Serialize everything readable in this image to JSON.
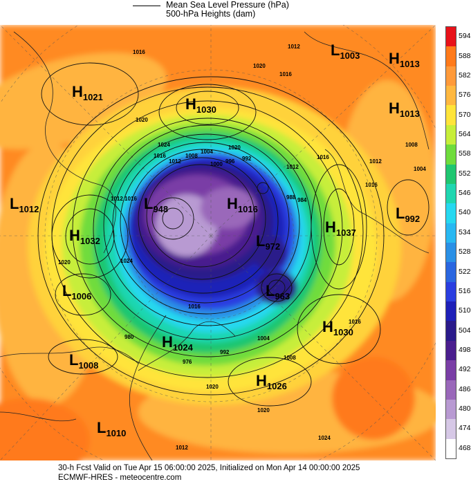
{
  "header": {
    "legend_pressure": "Mean Sea Level Pressure (hPa)",
    "legend_heights": "500-hPa Heights (dam)"
  },
  "footer": {
    "valid_line": "30-h Fcst Valid on Tue Apr 15 06:00:00 2025, Initialized on Mon Apr 14 00:00:00 2025",
    "model_line": "ECMWF-HRES - meteocentre.com"
  },
  "colorbar": {
    "levels": [
      "594",
      "588",
      "582",
      "576",
      "570",
      "564",
      "558",
      "552",
      "546",
      "540",
      "534",
      "528",
      "522",
      "516",
      "510",
      "504",
      "498",
      "492",
      "486",
      "480",
      "474",
      "468"
    ],
    "colors": [
      "#e8121a",
      "#ff7a1a",
      "#ff9a3a",
      "#ffb840",
      "#ffe43a",
      "#c7ee3a",
      "#6fdc3c",
      "#1fc670",
      "#1fd6b0",
      "#26d8f0",
      "#28b8f2",
      "#2a90e6",
      "#2a66e0",
      "#2a3ee0",
      "#1e20b8",
      "#2a1a8a",
      "#4a1e8e",
      "#7a3ea6",
      "#9a68ba",
      "#b89ad2",
      "#d6c8e6",
      "#ffffff"
    ]
  },
  "pressure_systems": [
    {
      "type": "H",
      "value": "1021"
    },
    {
      "type": "H",
      "value": "1030"
    },
    {
      "type": "L",
      "value": "1003"
    },
    {
      "type": "H",
      "value": "1013"
    },
    {
      "type": "H",
      "value": "1013"
    },
    {
      "type": "L",
      "value": "1012"
    },
    {
      "type": "L",
      "value": "948"
    },
    {
      "type": "H",
      "value": "1016"
    },
    {
      "type": "L",
      "value": "992"
    },
    {
      "type": "H",
      "value": "1032"
    },
    {
      "type": "H",
      "value": "1037"
    },
    {
      "type": "L",
      "value": "972"
    },
    {
      "type": "L",
      "value": "1006"
    },
    {
      "type": "L",
      "value": "963"
    },
    {
      "type": "H",
      "value": "1030"
    },
    {
      "type": "H",
      "value": "1024"
    },
    {
      "type": "L",
      "value": "1008"
    },
    {
      "type": "H",
      "value": "1026"
    },
    {
      "type": "L",
      "value": "1010"
    }
  ],
  "isobar_labels": [
    "1016",
    "1020",
    "1012",
    "1016",
    "1020",
    "1024",
    "1016",
    "1012",
    "1008",
    "1004",
    "1016",
    "1012",
    "1020",
    "1024",
    "1016",
    "1012",
    "1020",
    "1016",
    "1012",
    "1008",
    "1004",
    "1000",
    "996",
    "992",
    "988",
    "984",
    "980",
    "976",
    "992",
    "1004",
    "1016",
    "1020",
    "1008",
    "1016",
    "1012",
    "1024",
    "1020"
  ]
}
